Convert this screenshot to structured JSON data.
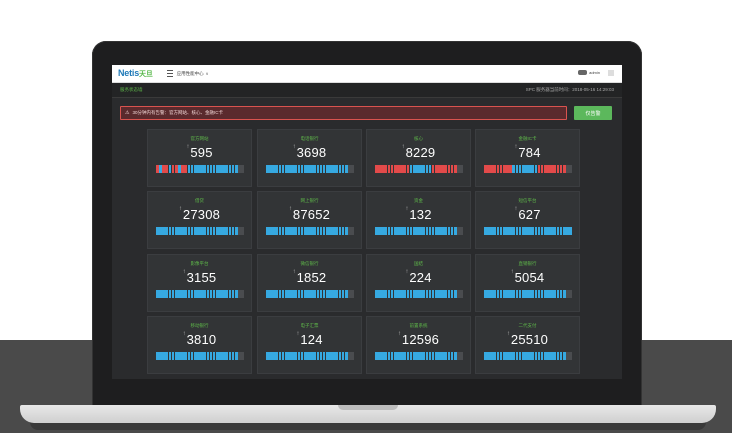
{
  "app": {
    "logo": "Netis",
    "logo_cn": "天旦",
    "menu_label": "应用性能中心",
    "user": "admin"
  },
  "subbar": {
    "section": "服务状态墙",
    "time_label": "SPC 服务器当前时间：",
    "time_value": "2018-05-16 14:29:03"
  },
  "alert": {
    "text": "30分钟内有告警：官方网站、核心、金融IC卡",
    "button": "仅告警"
  },
  "colors": {
    "ok": "#36a9e1",
    "alarm": "#e24a4a",
    "empty": "#4a4c4f",
    "accent": "#5fba4a"
  },
  "cards": [
    {
      "name": "官方网站",
      "value": "595",
      "bars": "rbrrbrrbrrbbbbbbbbbbbbbbbbgg"
    },
    {
      "name": "电话银行",
      "value": "3698",
      "bars": "bbbbbbbbbbbbbbbbbbbbbbbbbbgg"
    },
    {
      "name": "核心",
      "value": "8229",
      "bars": "rrrrrrrrrrrbbbbbbbrrrrrrrrgg"
    },
    {
      "name": "金融IC卡",
      "value": "784",
      "bars": "rrrrrrrrrbbbbbbbbrrrrrrrrrgg"
    },
    {
      "name": "借贷",
      "value": "27308",
      "bars": "bbbbbbbbbbbbbbbbbbbbbbbbbbgg"
    },
    {
      "name": "网上银行",
      "value": "87652",
      "bars": "bbbbbbbbbbbbbbbbbbbbbbbbbbgg"
    },
    {
      "name": "资金",
      "value": "132",
      "bars": "bbbbbbbbbbbbbbbbbbbbbbbbbbgg"
    },
    {
      "name": "短信平台",
      "value": "627",
      "bars": "bbbbbbbbbbbbbbbbbbbbbbbbbbbb"
    },
    {
      "name": "影像平台",
      "value": "3155",
      "bars": "bbbbbbbbbbbbbbbbbbbbbbbbbbgg"
    },
    {
      "name": "微信银行",
      "value": "1852",
      "bars": "bbbbbbbbbbbbbbbbbbbbbbbbbbgg"
    },
    {
      "name": "国结",
      "value": "224",
      "bars": "bbbbbbbbbbbbbbbbbbbbbbbbbbgg"
    },
    {
      "name": "直销银行",
      "value": "5054",
      "bars": "bbbbbbbbbbbbbbbbbbbbbbbbbbgg"
    },
    {
      "name": "移动银行",
      "value": "3810",
      "bars": "bbbbbbbbbbbbbbbbbbbbbbbbbbgg"
    },
    {
      "name": "电子汇票",
      "value": "124",
      "bars": "bbbbbbbbbbbbbbbbbbbbbbbbbbgg"
    },
    {
      "name": "前置系统",
      "value": "12596",
      "bars": "bbbbbbbbbbbbbbbbbbbbbbbbbbgg"
    },
    {
      "name": "二代支付",
      "value": "25510",
      "bars": "bbbbbbbbbbbbbbbbbbbbbbbbbbgg"
    }
  ]
}
